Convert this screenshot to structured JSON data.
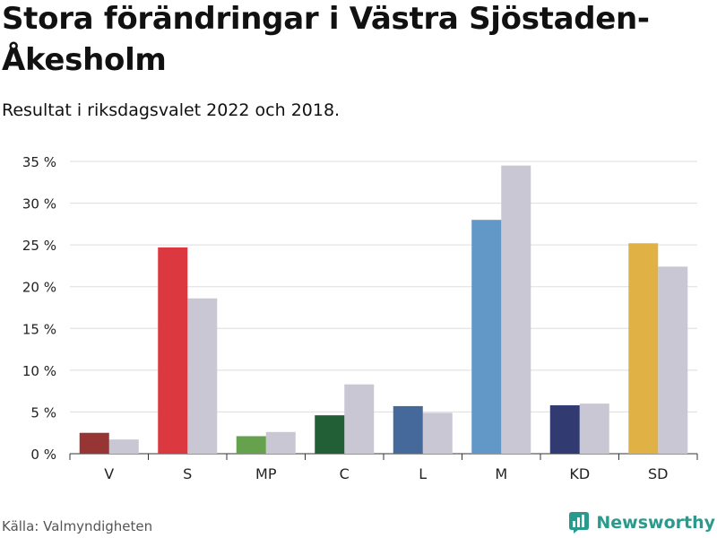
{
  "header": {
    "title": "Stora förändringar i Västra Sjöstaden-Åkesholm",
    "subtitle": "Resultat i riksdagsvalet 2022 och 2018."
  },
  "footer": {
    "source": "Källa: Valmyndigheten",
    "brand": "Newsworthy",
    "brand_icon": "bar-chart-logo-icon",
    "brand_color": "#2a9a8c"
  },
  "chart_data": {
    "type": "bar",
    "title": "Stora förändringar i Västra Sjöstaden-Åkesholm",
    "subtitle": "Resultat i riksdagsvalet 2022 och 2018.",
    "xlabel": "",
    "ylabel": "",
    "ylim": [
      0,
      35
    ],
    "yticks": [
      0,
      5,
      10,
      15,
      20,
      25,
      30,
      35
    ],
    "ytick_labels": [
      "0 %",
      "5 %",
      "10 %",
      "15 %",
      "20 %",
      "25 %",
      "30 %",
      "35 %"
    ],
    "categories": [
      "V",
      "S",
      "MP",
      "C",
      "L",
      "M",
      "KD",
      "SD"
    ],
    "grid": true,
    "legend": "none",
    "series": [
      {
        "values": [
          2.5,
          24.7,
          2.1,
          4.6,
          5.7,
          28.0,
          5.8,
          25.2
        ],
        "colors": [
          "#973535",
          "#dc3840",
          "#66a14e",
          "#225e36",
          "#44699a",
          "#6298c8",
          "#313b71",
          "#e0b245"
        ]
      },
      {
        "values": [
          1.7,
          18.6,
          2.6,
          8.3,
          4.9,
          34.5,
          6.0,
          22.4
        ],
        "color": "#c8c7d3"
      }
    ]
  }
}
